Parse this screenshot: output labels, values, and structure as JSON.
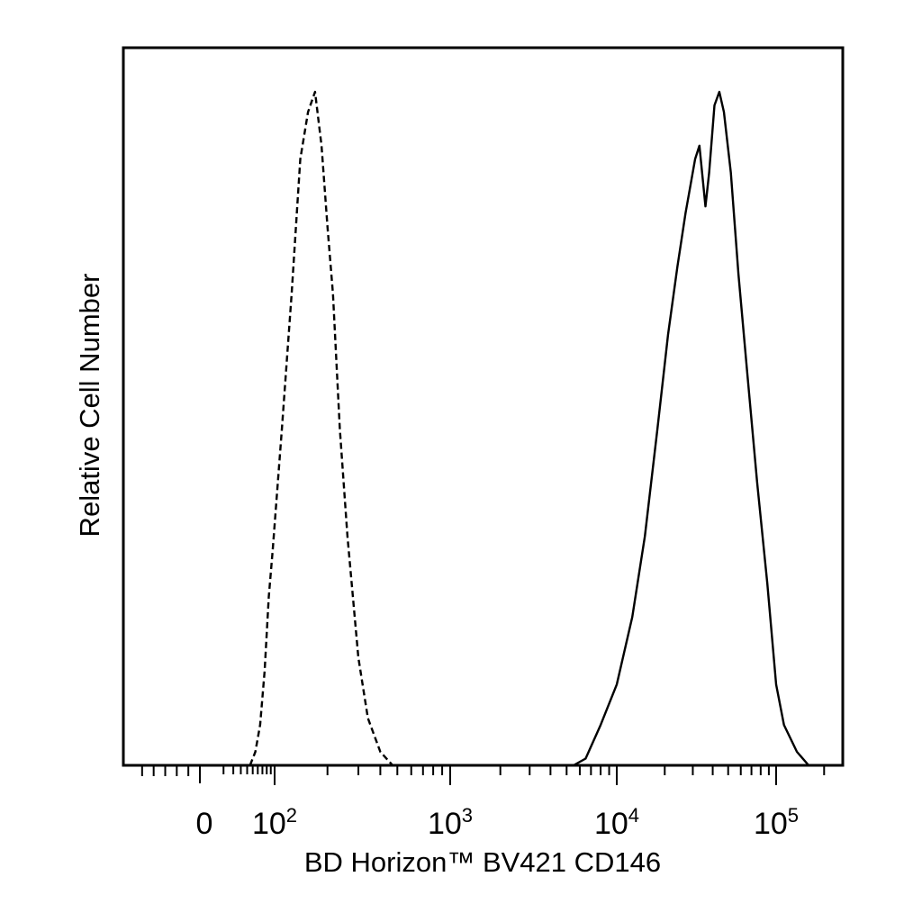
{
  "chart_data": {
    "type": "histogram",
    "title": "",
    "xlabel": "BD Horizon™ BV421 CD146",
    "ylabel": "Relative Cell Number",
    "x_scale": "biexponential",
    "xlim": [
      -600,
      250000
    ],
    "ylim": [
      0,
      1
    ],
    "x_tick_labels": [
      {
        "value": 0,
        "base": "0",
        "exp": ""
      },
      {
        "value": 100,
        "base": "10",
        "exp": "2"
      },
      {
        "value": 1000,
        "base": "10",
        "exp": "3"
      },
      {
        "value": 10000,
        "base": "10",
        "exp": "4"
      },
      {
        "value": 100000,
        "base": "10",
        "exp": "5"
      }
    ],
    "grid": false,
    "legend": "none",
    "series": [
      {
        "style": "dashed",
        "color": "#000000",
        "points": [
          [
            45,
            0.0
          ],
          [
            55,
            0.02
          ],
          [
            65,
            0.06
          ],
          [
            75,
            0.14
          ],
          [
            85,
            0.25
          ],
          [
            95,
            0.32
          ],
          [
            110,
            0.5
          ],
          [
            125,
            0.7
          ],
          [
            140,
            0.9
          ],
          [
            155,
            0.97
          ],
          [
            170,
            1.0
          ],
          [
            185,
            0.92
          ],
          [
            200,
            0.8
          ],
          [
            215,
            0.7
          ],
          [
            235,
            0.5
          ],
          [
            260,
            0.34
          ],
          [
            300,
            0.16
          ],
          [
            340,
            0.07
          ],
          [
            400,
            0.02
          ],
          [
            470,
            0.0
          ]
        ]
      },
      {
        "style": "solid",
        "color": "#000000",
        "points": [
          [
            5500,
            0.0
          ],
          [
            6500,
            0.01
          ],
          [
            8000,
            0.06
          ],
          [
            10000,
            0.12
          ],
          [
            12500,
            0.22
          ],
          [
            15000,
            0.34
          ],
          [
            18000,
            0.5
          ],
          [
            21000,
            0.64
          ],
          [
            24000,
            0.74
          ],
          [
            27000,
            0.82
          ],
          [
            31000,
            0.9
          ],
          [
            33000,
            0.92
          ],
          [
            36000,
            0.83
          ],
          [
            38000,
            0.88
          ],
          [
            41000,
            0.98
          ],
          [
            44000,
            1.0
          ],
          [
            47000,
            0.97
          ],
          [
            52000,
            0.88
          ],
          [
            58000,
            0.73
          ],
          [
            66000,
            0.58
          ],
          [
            76000,
            0.42
          ],
          [
            88000,
            0.27
          ],
          [
            100000,
            0.12
          ],
          [
            112000,
            0.06
          ],
          [
            135000,
            0.02
          ],
          [
            160000,
            0.0
          ]
        ]
      }
    ]
  }
}
